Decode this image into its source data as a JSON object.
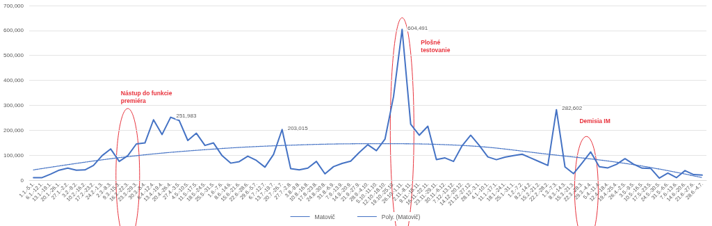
{
  "chart_data": {
    "type": "line",
    "categories": [
      "1.1.-5.1.",
      "6.1.-12.1.",
      "13.1.-19.1.",
      "20.1.-26.1.",
      "27.1.-2.2.",
      "3.2.-9.2.",
      "10.2.-16.2.",
      "17.2.-23.2.",
      "24.2.-1.3.",
      "2.3.-8.3.",
      "9.3.-15.3.",
      "16.3.-22.3.",
      "23.3.-29.3.",
      "30.3.-5.4.",
      "6.4.-12.4.",
      "13.4.-19.4.",
      "20.4.-26.4.",
      "27.4.-3.5.",
      "4.5.-10.5.",
      "11.5.-17.5.",
      "18.5.-24.5.",
      "25.5.-31.5.",
      "1.6.-7.6.",
      "8.6.-14.6.",
      "15.6.-21.6.",
      "22.6.-28.6.",
      "29.6.-5.7.",
      "6.7.-12.7.",
      "13.7.-19.7.",
      "20.7.-26.7.",
      "27.7.-2.8.",
      "3.8.-9.8.",
      "10.8.-16.8.",
      "17.8.-23.8.",
      "24.8.-30.8.",
      "31.8.-6.9.",
      "7.9.-13.9.",
      "14.9.-20.9.",
      "21.9.-27.9.",
      "28.9.-4.10.",
      "5.10.-11.10.",
      "12.10.-18.10.",
      "19.10.-25.10.",
      "26.10.-1.11.",
      "2.11.-8.11.",
      "9.11.-15.11.",
      "16.11.-22.11.",
      "23.11.-29.11.",
      "30.11.-6.12.",
      "7.12.-13.12.",
      "14.12.-20.12.",
      "21.12.-27.12.",
      "28.12.-3.1.",
      "4.1.-10.1.",
      "11.1.-17.1.",
      "18.1.-24.1.",
      "25.1.-31.1.",
      "1.2.-7.2.",
      "8.2.-14.2.",
      "15.2.-21.2.",
      "22.2.-28.2.",
      "1.3.-7.3.",
      "8.3.-14.3.",
      "15.3.-21.3.",
      "22.3.-28.3.",
      "29.3.-4.4.",
      "5.4.-11.4.",
      "12.4.-18.4.",
      "19.4.-25.4.",
      "26.4.-2.5.",
      "3.5.-9.5.",
      "10.5.-16.5.",
      "17.5.-23.5.",
      "24.5.-30.5.",
      "31.5.-6.6.",
      "7.6.-13.6.",
      "14.6.-20.6.",
      "21.6.-27.6.",
      "28.6.-4.7."
    ],
    "series": [
      {
        "name": "Matovič",
        "color": "#4472c4",
        "line_style": "solid",
        "values": [
          10000,
          10000,
          24000,
          40000,
          48000,
          40000,
          41000,
          59000,
          98000,
          125000,
          75000,
          98000,
          145000,
          149000,
          242000,
          183000,
          251983,
          239000,
          159000,
          188000,
          139000,
          149000,
          98000,
          68000,
          74000,
          96000,
          79000,
          52000,
          103000,
          203015,
          46000,
          41000,
          48000,
          75000,
          25000,
          54000,
          67000,
          76000,
          111000,
          142000,
          118000,
          164000,
          335000,
          604491,
          224000,
          180000,
          216000,
          82000,
          89000,
          75000,
          138000,
          180000,
          139000,
          93000,
          82000,
          92000,
          98000,
          104000,
          89000,
          74000,
          59000,
          282602,
          53000,
          26000,
          69000,
          113000,
          54000,
          49000,
          63000,
          86000,
          64000,
          48000,
          47000,
          8000,
          28000,
          10000,
          38000,
          22000,
          20000
        ],
        "value_labels": [
          null,
          null,
          null,
          null,
          null,
          null,
          null,
          null,
          null,
          null,
          null,
          null,
          null,
          null,
          null,
          null,
          "251,983",
          null,
          null,
          null,
          null,
          null,
          null,
          null,
          null,
          null,
          null,
          null,
          null,
          "203,015",
          null,
          null,
          null,
          null,
          null,
          null,
          null,
          null,
          null,
          null,
          null,
          null,
          null,
          "604,491",
          null,
          null,
          null,
          null,
          null,
          null,
          null,
          null,
          null,
          null,
          null,
          null,
          null,
          null,
          null,
          null,
          null,
          "282,602",
          null,
          null,
          null,
          null,
          null,
          null,
          null,
          null,
          null,
          null,
          null,
          null,
          null,
          null,
          null,
          null,
          null
        ]
      },
      {
        "name": "Poly. (Matovič)",
        "color": "#4472c4",
        "line_style": "dotted",
        "x": [
          "1.1.-5.1.",
          "9.3.-15.3.",
          "18.5.-24.5.",
          "27.7.-2.8.",
          "5.10.-11.10.",
          "14.12.-20.12.",
          "22.2.-28.2.",
          "3.5.-9.5.",
          "28.6.-4.7."
        ],
        "values": [
          41000,
          90000,
          122000,
          140000,
          146000,
          139000,
          104000,
          62000,
          10000
        ]
      }
    ],
    "ylim": [
      0,
      700000
    ],
    "yticks": [
      0,
      {
        "value": 100000,
        "label": "100,000"
      },
      {
        "value": 200000,
        "label": "200,000"
      },
      {
        "value": 300000,
        "label": "300,000"
      },
      {
        "value": 400000,
        "label": "400,000"
      },
      {
        "value": 500000,
        "label": "500,000"
      },
      {
        "value": 600000,
        "label": "600,000"
      },
      {
        "value": 700000,
        "label": "700,000"
      }
    ],
    "grid": "y",
    "legend": "bottom",
    "marker": "none",
    "annotations": [
      "Nástup do funkcie premiéra",
      "Plošné testovanie",
      "Demisia IM"
    ]
  }
}
